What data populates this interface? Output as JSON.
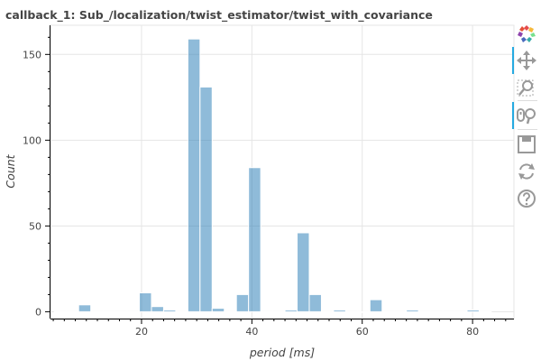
{
  "chart_data": {
    "type": "bar",
    "title": "callback_1: Sub_/localization/twist_estimator/twist_with_covariance",
    "xlabel": "period [ms]",
    "ylabel": "Count",
    "xlim": [
      3.5,
      87.5
    ],
    "ylim": [
      -4,
      167
    ],
    "xticks": [
      20,
      40,
      60,
      80
    ],
    "yticks": [
      0,
      50,
      100,
      150
    ],
    "grid": true,
    "bar_color": "#1f77b4",
    "bin_width": 2.2,
    "bins": [
      {
        "x": 5.3,
        "value": 0
      },
      {
        "x": 7.5,
        "value": 0
      },
      {
        "x": 9.7,
        "value": 4
      },
      {
        "x": 11.9,
        "value": 0
      },
      {
        "x": 14.1,
        "value": 0
      },
      {
        "x": 16.3,
        "value": 0
      },
      {
        "x": 18.5,
        "value": 0
      },
      {
        "x": 20.7,
        "value": 11
      },
      {
        "x": 22.9,
        "value": 3
      },
      {
        "x": 25.1,
        "value": 1
      },
      {
        "x": 27.3,
        "value": 0
      },
      {
        "x": 29.5,
        "value": 159
      },
      {
        "x": 31.7,
        "value": 131
      },
      {
        "x": 33.9,
        "value": 2
      },
      {
        "x": 36.1,
        "value": 0
      },
      {
        "x": 38.3,
        "value": 10
      },
      {
        "x": 40.5,
        "value": 84
      },
      {
        "x": 42.7,
        "value": 0
      },
      {
        "x": 44.9,
        "value": 0
      },
      {
        "x": 47.1,
        "value": 1
      },
      {
        "x": 49.3,
        "value": 46
      },
      {
        "x": 51.5,
        "value": 10
      },
      {
        "x": 53.7,
        "value": 0
      },
      {
        "x": 55.9,
        "value": 1
      },
      {
        "x": 58.1,
        "value": 0
      },
      {
        "x": 60.3,
        "value": 0
      },
      {
        "x": 62.5,
        "value": 7
      },
      {
        "x": 64.7,
        "value": 0
      },
      {
        "x": 66.9,
        "value": 0
      },
      {
        "x": 69.1,
        "value": 1
      },
      {
        "x": 71.3,
        "value": 0
      },
      {
        "x": 73.5,
        "value": 0
      },
      {
        "x": 75.7,
        "value": 0
      },
      {
        "x": 77.9,
        "value": 0
      },
      {
        "x": 80.1,
        "value": 1
      },
      {
        "x": 82.3,
        "value": 0
      }
    ]
  },
  "toolbar": {
    "tools": [
      {
        "name": "bokeh-logo",
        "icon": "bokeh-logo-icon",
        "active": false
      },
      {
        "name": "pan-tool",
        "icon": "pan-icon",
        "active": true
      },
      {
        "name": "box-zoom-tool",
        "icon": "box-zoom-icon",
        "active": false
      },
      {
        "name": "wheel-zoom-tool",
        "icon": "wheel-zoom-icon",
        "active": true
      },
      {
        "name": "save-tool",
        "icon": "save-icon",
        "active": false
      },
      {
        "name": "reset-tool",
        "icon": "reset-icon",
        "active": false
      },
      {
        "name": "help-tool",
        "icon": "help-icon",
        "active": false
      }
    ]
  }
}
